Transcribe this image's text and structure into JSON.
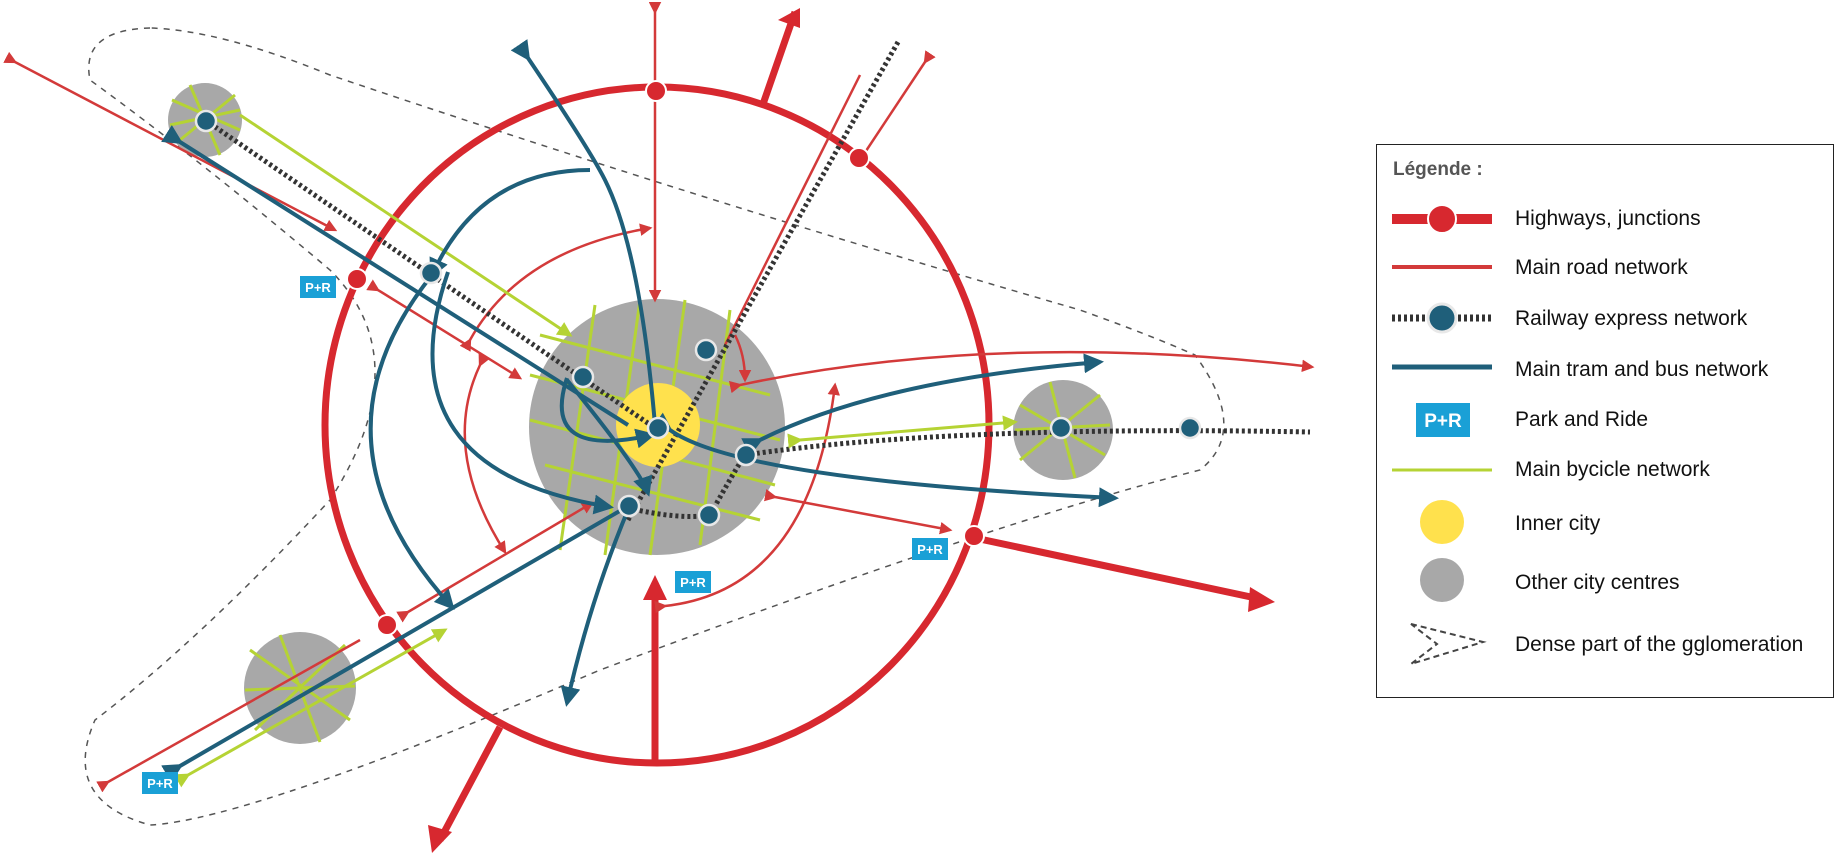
{
  "legend": {
    "title": "Légende :",
    "items": [
      {
        "icon": "highway-junction-icon",
        "label": "Highways, junctions"
      },
      {
        "icon": "main-road-icon",
        "label": "Main road network"
      },
      {
        "icon": "railway-express-icon",
        "label": "Railway express network"
      },
      {
        "icon": "tram-bus-icon",
        "label": "Main tram and bus network"
      },
      {
        "icon": "park-and-ride-icon",
        "label": "Park and Ride"
      },
      {
        "icon": "bicycle-network-icon",
        "label": "Main bycicle network"
      },
      {
        "icon": "inner-city-icon",
        "label": "Inner city"
      },
      {
        "icon": "other-city-centre-icon",
        "label": "Other city centres"
      },
      {
        "icon": "dense-area-icon",
        "label": "Dense part of the gglomeration"
      }
    ]
  },
  "park_and_ride_label": "P+R",
  "colors": {
    "highway": "#d7282f",
    "road": "#d33a3a",
    "tram": "#1f5f7a",
    "bike": "#b5d334",
    "rail": "#333333",
    "inner_city": "#ffe14d",
    "city_centre": "#a8a8a8",
    "park_ride": "#1aa0d6"
  }
}
